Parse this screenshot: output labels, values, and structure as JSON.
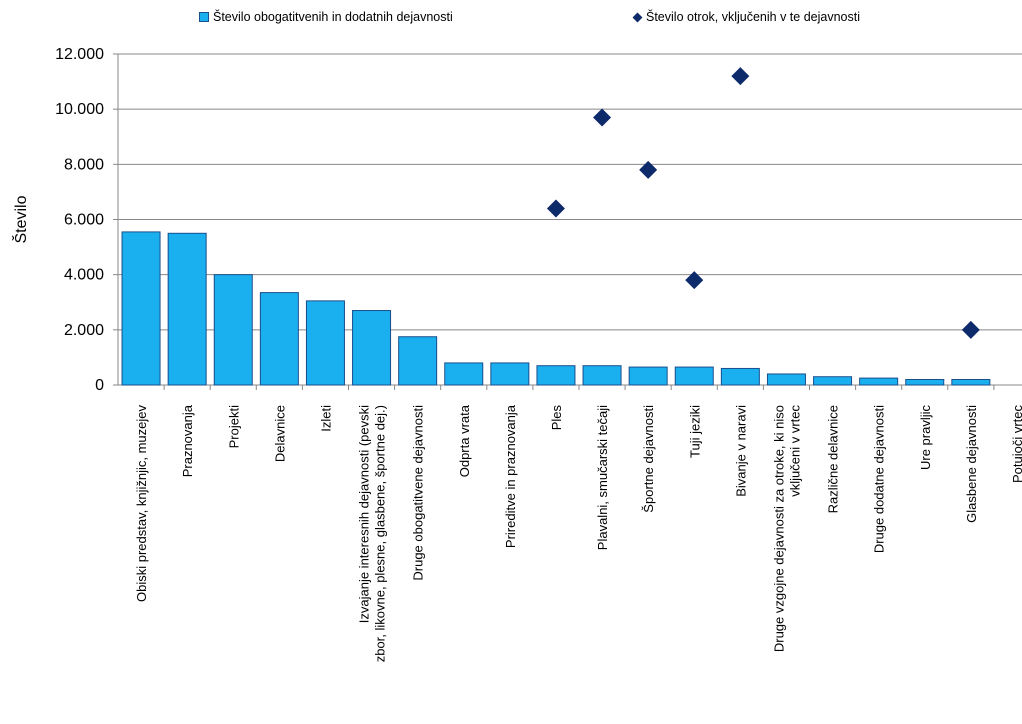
{
  "legend": {
    "bars_label": "Število obogatitvenih in dodatnih dejavnosti",
    "points_label": "Število otrok, vključenih v te dejavnosti"
  },
  "chart_data": {
    "type": "bar",
    "ylabel": "Število",
    "xlabel": "",
    "ylim": [
      0,
      12000
    ],
    "yticks": [
      0,
      2000,
      4000,
      6000,
      8000,
      10000,
      12000
    ],
    "ytick_labels": [
      "0",
      "2.000",
      "4.000",
      "6.000",
      "8.000",
      "10.000",
      "12.000"
    ],
    "grid": "horizontal",
    "legend_position": "top",
    "colors": {
      "bars": "#1ab0f0",
      "bar_border": "#1a4e8c",
      "points": "#0d2a6b"
    },
    "categories": [
      [
        "Obiski predstav, knjižnjic, muzejev"
      ],
      [
        "Praznovanja"
      ],
      [
        "Projekti"
      ],
      [
        "Delavnice"
      ],
      [
        "Izleti"
      ],
      [
        "Izvajanje interesnih dejavnosti (pevski",
        "zbor, likovne, plesne, glasbene, športne dej.)"
      ],
      [
        "Druge obogatitvene dejavnosti"
      ],
      [
        "Odprta vrata"
      ],
      [
        "Prireditve in praznovanja"
      ],
      [
        "Ples"
      ],
      [
        "Plavalni, smučarski tečaji"
      ],
      [
        "Športne dejavnosti"
      ],
      [
        "Tuji jeziki"
      ],
      [
        "Bivanje v naravi"
      ],
      [
        "Druge vzgojne dejavnosti za otroke, ki niso",
        "vključeni v vrtec"
      ],
      [
        "Različne delavnice"
      ],
      [
        "Druge dodatne dejavnosti"
      ],
      [
        "Ure pravljic"
      ],
      [
        "Glasbene dejavnosti"
      ],
      [
        "Potujoči vrtec"
      ]
    ],
    "series": [
      {
        "name": "Število obogatitvenih in dodatnih dejavnosti",
        "type": "bar",
        "values": [
          5550,
          5500,
          4000,
          3350,
          3050,
          2700,
          1750,
          800,
          800,
          700,
          700,
          650,
          650,
          600,
          400,
          300,
          250,
          200,
          200,
          0
        ]
      },
      {
        "name": "Število otrok, vključenih v te dejavnosti",
        "type": "scatter",
        "marker": "diamond",
        "values": [
          null,
          null,
          null,
          null,
          null,
          null,
          null,
          null,
          null,
          6400,
          9700,
          7800,
          3800,
          11200,
          null,
          null,
          null,
          null,
          2000,
          null
        ]
      }
    ]
  }
}
